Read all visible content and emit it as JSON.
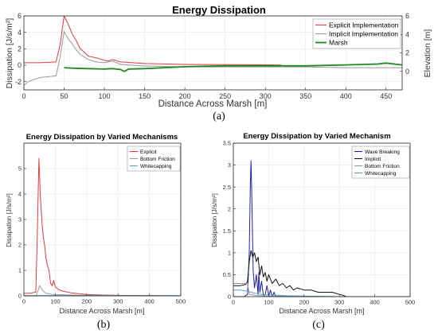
{
  "chart_data": [
    {
      "id": "a",
      "type": "line",
      "title": "Energy Dissipation",
      "xlabel": "Distance Across Marsh [m]",
      "ylabel": "Dissipation [J/s/m²]",
      "ylabel_right": "Elevation [m]",
      "caption": "(a)",
      "xlim": [
        0,
        470
      ],
      "ylim": [
        -3,
        6
      ],
      "ylim_right": [
        -2,
        6
      ],
      "xticks": [
        0,
        50,
        100,
        150,
        200,
        250,
        300,
        350,
        400,
        450
      ],
      "yticks": [
        -2,
        0,
        2,
        4,
        6
      ],
      "yticks_right": [
        0,
        2,
        4,
        6
      ],
      "legend_position": "top-right",
      "series": [
        {
          "name": "Explicit Implementation",
          "color": "#e03c3c",
          "axis": "left",
          "x": [
            0,
            20,
            40,
            45,
            50,
            55,
            60,
            65,
            70,
            75,
            80,
            90,
            100,
            105,
            110,
            120,
            150,
            200,
            250,
            300,
            320
          ],
          "y": [
            0.3,
            0.3,
            0.4,
            2.5,
            6.0,
            5.0,
            3.8,
            3.0,
            2.0,
            1.6,
            1.1,
            0.9,
            0.6,
            0.5,
            0.7,
            0.4,
            0.2,
            0.1,
            0.08,
            0.05,
            0.02
          ]
        },
        {
          "name": "Implicit Implementation",
          "color": "#999999",
          "axis": "left",
          "x": [
            0,
            5,
            20,
            40,
            45,
            50,
            55,
            60,
            65,
            70,
            80,
            90,
            100,
            110,
            120,
            150,
            200,
            250,
            300,
            350,
            400,
            470
          ],
          "y": [
            -2.5,
            -2.0,
            -1.5,
            -1.3,
            1.0,
            4.1,
            3.2,
            2.6,
            1.9,
            1.3,
            0.7,
            0.4,
            0.3,
            0.5,
            0.1,
            -0.1,
            -0.2,
            -0.2,
            -0.2,
            -0.2,
            -0.3,
            -0.3
          ]
        },
        {
          "name": "Marsh",
          "color": "#1f8a1f",
          "axis": "right",
          "x": [
            50,
            60,
            80,
            100,
            110,
            120,
            125,
            130,
            150,
            200,
            250,
            300,
            350,
            400,
            440,
            450,
            460,
            470
          ],
          "y": [
            0.4,
            0.35,
            0.3,
            0.25,
            0.3,
            0.2,
            0.0,
            0.25,
            0.3,
            0.5,
            0.6,
            0.6,
            0.6,
            0.7,
            0.8,
            0.9,
            0.8,
            0.7
          ]
        }
      ]
    },
    {
      "id": "b",
      "type": "line",
      "title": "Energy Dissipation by Varied Mechanisms",
      "xlabel": "Distance Across Marsh [m]",
      "ylabel": "Dissipation [J/s/m²]",
      "caption": "(b)",
      "xlim": [
        0,
        500
      ],
      "ylim": [
        0,
        6
      ],
      "xticks": [
        0,
        100,
        200,
        300,
        400,
        500
      ],
      "yticks": [
        0,
        1,
        2,
        3,
        4,
        5
      ],
      "legend_position": "top-right",
      "series": [
        {
          "name": "Explicit",
          "color": "#e03c3c",
          "x": [
            0,
            20,
            38,
            43,
            48,
            52,
            58,
            62,
            66,
            70,
            75,
            80,
            85,
            90,
            95,
            100,
            105,
            110,
            120,
            150,
            200,
            250,
            300,
            500
          ],
          "y": [
            0.1,
            0.1,
            0.15,
            2.5,
            5.4,
            4.0,
            2.8,
            2.3,
            2.0,
            1.5,
            1.2,
            1.0,
            0.5,
            0.4,
            0.6,
            0.35,
            0.3,
            0.25,
            0.2,
            0.12,
            0.05,
            0.03,
            0.02,
            0.0
          ]
        },
        {
          "name": "Bottom Friction",
          "color": "#999999",
          "x": [
            0,
            30,
            40,
            45,
            50,
            55,
            60,
            70,
            80,
            90,
            100,
            150,
            200,
            300,
            500
          ],
          "y": [
            0.0,
            0.0,
            0.02,
            0.2,
            0.4,
            0.3,
            0.2,
            0.1,
            0.08,
            0.06,
            0.05,
            0.03,
            0.02,
            0.01,
            0.0
          ]
        },
        {
          "name": "Whitecapping",
          "color": "#5aa0c8",
          "x": [
            0,
            50,
            100,
            200,
            300,
            400,
            500
          ],
          "y": [
            0.01,
            0.01,
            0.01,
            0.01,
            0.01,
            0.01,
            0.01
          ]
        }
      ]
    },
    {
      "id": "c",
      "type": "line",
      "title": "Energy Dissipation by Varied Mechanism",
      "xlabel": "Distance Across Marsh [m]",
      "ylabel": "Dissipation [J/s/m²]",
      "caption": "(c)",
      "xlim": [
        0,
        500
      ],
      "ylim": [
        0,
        3.5
      ],
      "xticks": [
        0,
        100,
        200,
        300,
        400,
        500
      ],
      "yticks": [
        0,
        0.5,
        1,
        1.5,
        2,
        2.5,
        3,
        3.5
      ],
      "legend_position": "top-right",
      "series": [
        {
          "name": "Wave Breaking",
          "color": "#2020a0",
          "x": [
            0,
            30,
            40,
            45,
            48,
            50,
            53,
            56,
            60,
            65,
            70,
            72,
            75,
            80,
            85,
            90,
            95,
            100,
            105,
            110,
            115,
            120,
            150,
            500
          ],
          "y": [
            0.0,
            0.0,
            0.05,
            1.0,
            2.5,
            3.1,
            2.0,
            0.6,
            0.2,
            0.5,
            0.05,
            0.55,
            0.1,
            0.35,
            0.02,
            0.05,
            0.25,
            0.02,
            0.15,
            0.0,
            0.1,
            0.0,
            0.0,
            0.0
          ]
        },
        {
          "name": "Implicit",
          "color": "#111111",
          "x": [
            0,
            20,
            35,
            40,
            45,
            50,
            55,
            60,
            65,
            70,
            75,
            80,
            85,
            90,
            95,
            100,
            110,
            120,
            130,
            140,
            150,
            160,
            170,
            180,
            200,
            220,
            240,
            260,
            280,
            300,
            310,
            320,
            500
          ],
          "y": [
            0.25,
            0.25,
            0.28,
            0.35,
            0.8,
            1.05,
            0.9,
            1.0,
            0.8,
            0.9,
            0.5,
            0.7,
            0.45,
            0.55,
            0.35,
            0.5,
            0.3,
            0.4,
            0.25,
            0.3,
            0.2,
            0.25,
            0.15,
            0.2,
            0.15,
            0.15,
            0.1,
            0.1,
            0.1,
            0.05,
            0.03,
            0.0,
            0.0
          ]
        },
        {
          "name": "Bottom Friction",
          "color": "#999999",
          "x": [
            0,
            20,
            40,
            45,
            50,
            55,
            60,
            70,
            80,
            100,
            150,
            200,
            300,
            500
          ],
          "y": [
            0.3,
            0.3,
            0.3,
            0.05,
            0.05,
            0.04,
            0.03,
            0.02,
            0.02,
            0.01,
            0.01,
            0.01,
            0.0,
            0.0
          ]
        },
        {
          "name": "Whitecapping",
          "color": "#5aa0c8",
          "x": [
            0,
            20,
            40,
            50,
            60,
            80,
            100,
            150,
            200,
            300,
            500
          ],
          "y": [
            0.15,
            0.15,
            0.12,
            0.1,
            0.08,
            0.05,
            0.04,
            0.02,
            0.01,
            0.0,
            0.0
          ]
        }
      ]
    }
  ]
}
